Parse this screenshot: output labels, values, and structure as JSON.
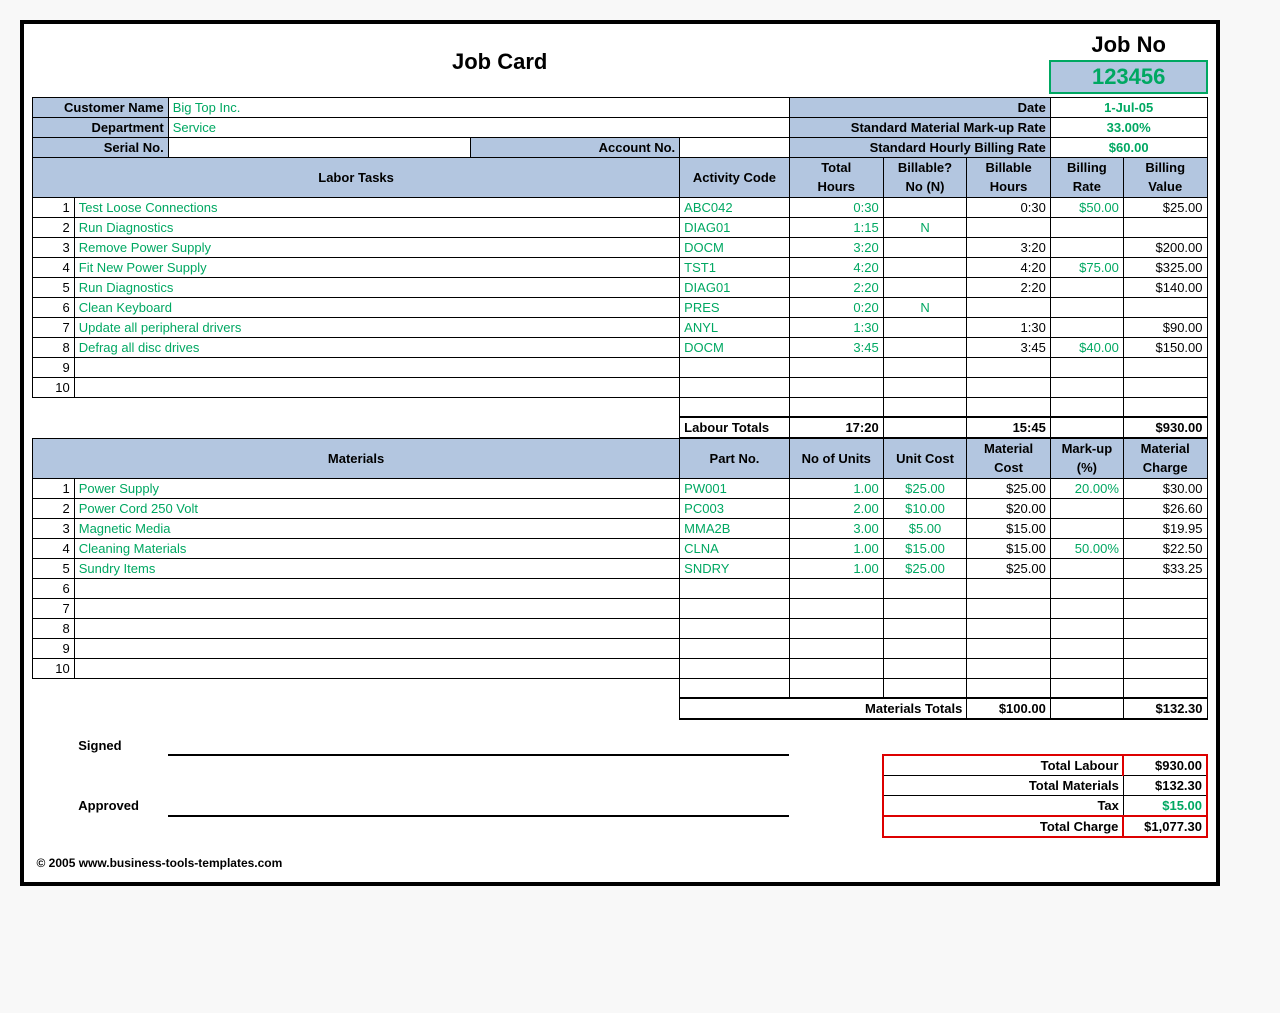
{
  "title": "Job Card",
  "jobNo": {
    "label": "Job No",
    "value": "123456"
  },
  "info": {
    "customerNameLabel": "Customer Name",
    "customerName": "Big Top Inc.",
    "departmentLabel": "Department",
    "department": "Service",
    "serialLabel": "Serial No.",
    "serial": "",
    "accountLabel": "Account No.",
    "account": "",
    "dateLabel": "Date",
    "date": "1-Jul-05",
    "markupRateLabel": "Standard Material Mark-up Rate",
    "markupRate": "33.00%",
    "hourlyRateLabel": "Standard Hourly Billing Rate",
    "hourlyRate": "$60.00"
  },
  "labor": {
    "headers": {
      "tasks": "Labor Tasks",
      "code": "Activity Code",
      "totalHours": "Total Hours",
      "billable": "Billable? No (N)",
      "billableHours": "Billable Hours",
      "rate": "Billing Rate",
      "value": "Billing Value"
    },
    "rows": [
      {
        "n": "1",
        "task": "Test Loose Connections",
        "code": "ABC042",
        "total": "0:30",
        "bill": "",
        "bh": "0:30",
        "rate": "$50.00",
        "val": "$25.00"
      },
      {
        "n": "2",
        "task": "Run Diagnostics",
        "code": "DIAG01",
        "total": "1:15",
        "bill": "N",
        "bh": "",
        "rate": "",
        "val": ""
      },
      {
        "n": "3",
        "task": "Remove Power Supply",
        "code": "DOCM",
        "total": "3:20",
        "bill": "",
        "bh": "3:20",
        "rate": "",
        "val": "$200.00"
      },
      {
        "n": "4",
        "task": "Fit New Power Supply",
        "code": "TST1",
        "total": "4:20",
        "bill": "",
        "bh": "4:20",
        "rate": "$75.00",
        "val": "$325.00"
      },
      {
        "n": "5",
        "task": "Run Diagnostics",
        "code": "DIAG01",
        "total": "2:20",
        "bill": "",
        "bh": "2:20",
        "rate": "",
        "val": "$140.00"
      },
      {
        "n": "6",
        "task": "Clean Keyboard",
        "code": "PRES",
        "total": "0:20",
        "bill": "N",
        "bh": "",
        "rate": "",
        "val": ""
      },
      {
        "n": "7",
        "task": "Update all peripheral drivers",
        "code": "ANYL",
        "total": "1:30",
        "bill": "",
        "bh": "1:30",
        "rate": "",
        "val": "$90.00"
      },
      {
        "n": "8",
        "task": "Defrag all disc drives",
        "code": "DOCM",
        "total": "3:45",
        "bill": "",
        "bh": "3:45",
        "rate": "$40.00",
        "val": "$150.00"
      },
      {
        "n": "9",
        "task": "",
        "code": "",
        "total": "",
        "bill": "",
        "bh": "",
        "rate": "",
        "val": ""
      },
      {
        "n": "10",
        "task": "",
        "code": "",
        "total": "",
        "bill": "",
        "bh": "",
        "rate": "",
        "val": ""
      }
    ],
    "totals": {
      "label": "Labour Totals",
      "total": "17:20",
      "bh": "15:45",
      "val": "$930.00"
    }
  },
  "materials": {
    "headers": {
      "materials": "Materials",
      "part": "Part No.",
      "units": "No of Units",
      "unitCost": "Unit Cost",
      "matCost": "Material Cost",
      "markup": "Mark-up (%)",
      "charge": "Material Charge"
    },
    "rows": [
      {
        "n": "1",
        "mat": "Power Supply",
        "part": "PW001",
        "units": "1.00",
        "uc": "$25.00",
        "mc": "$25.00",
        "mu": "20.00%",
        "ch": "$30.00"
      },
      {
        "n": "2",
        "mat": "Power Cord 250 Volt",
        "part": "PC003",
        "units": "2.00",
        "uc": "$10.00",
        "mc": "$20.00",
        "mu": "",
        "ch": "$26.60"
      },
      {
        "n": "3",
        "mat": "Magnetic Media",
        "part": "MMA2B",
        "units": "3.00",
        "uc": "$5.00",
        "mc": "$15.00",
        "mu": "",
        "ch": "$19.95"
      },
      {
        "n": "4",
        "mat": "Cleaning Materials",
        "part": "CLNA",
        "units": "1.00",
        "uc": "$15.00",
        "mc": "$15.00",
        "mu": "50.00%",
        "ch": "$22.50"
      },
      {
        "n": "5",
        "mat": "Sundry Items",
        "part": "SNDRY",
        "units": "1.00",
        "uc": "$25.00",
        "mc": "$25.00",
        "mu": "",
        "ch": "$33.25"
      },
      {
        "n": "6",
        "mat": "",
        "part": "",
        "units": "",
        "uc": "",
        "mc": "",
        "mu": "",
        "ch": ""
      },
      {
        "n": "7",
        "mat": "",
        "part": "",
        "units": "",
        "uc": "",
        "mc": "",
        "mu": "",
        "ch": ""
      },
      {
        "n": "8",
        "mat": "",
        "part": "",
        "units": "",
        "uc": "",
        "mc": "",
        "mu": "",
        "ch": ""
      },
      {
        "n": "9",
        "mat": "",
        "part": "",
        "units": "",
        "uc": "",
        "mc": "",
        "mu": "",
        "ch": ""
      },
      {
        "n": "10",
        "mat": "",
        "part": "",
        "units": "",
        "uc": "",
        "mc": "",
        "mu": "",
        "ch": ""
      }
    ],
    "totals": {
      "label": "Materials Totals",
      "mc": "$100.00",
      "ch": "$132.30"
    }
  },
  "signoff": {
    "signed": "Signed",
    "approved": "Approved"
  },
  "summary": {
    "labourLabel": "Total Labour",
    "labour": "$930.00",
    "materialsLabel": "Total Materials",
    "materials": "$132.30",
    "taxLabel": "Tax",
    "tax": "$15.00",
    "chargeLabel": "Total Charge",
    "charge": "$1,077.30"
  },
  "copyright": "© 2005 www.business-tools-templates.com",
  "colors": {
    "headerFill": "#b3c6e0",
    "green": "#00a862",
    "redBorder": "#d00000",
    "black": "#000000",
    "white": "#ffffff"
  }
}
